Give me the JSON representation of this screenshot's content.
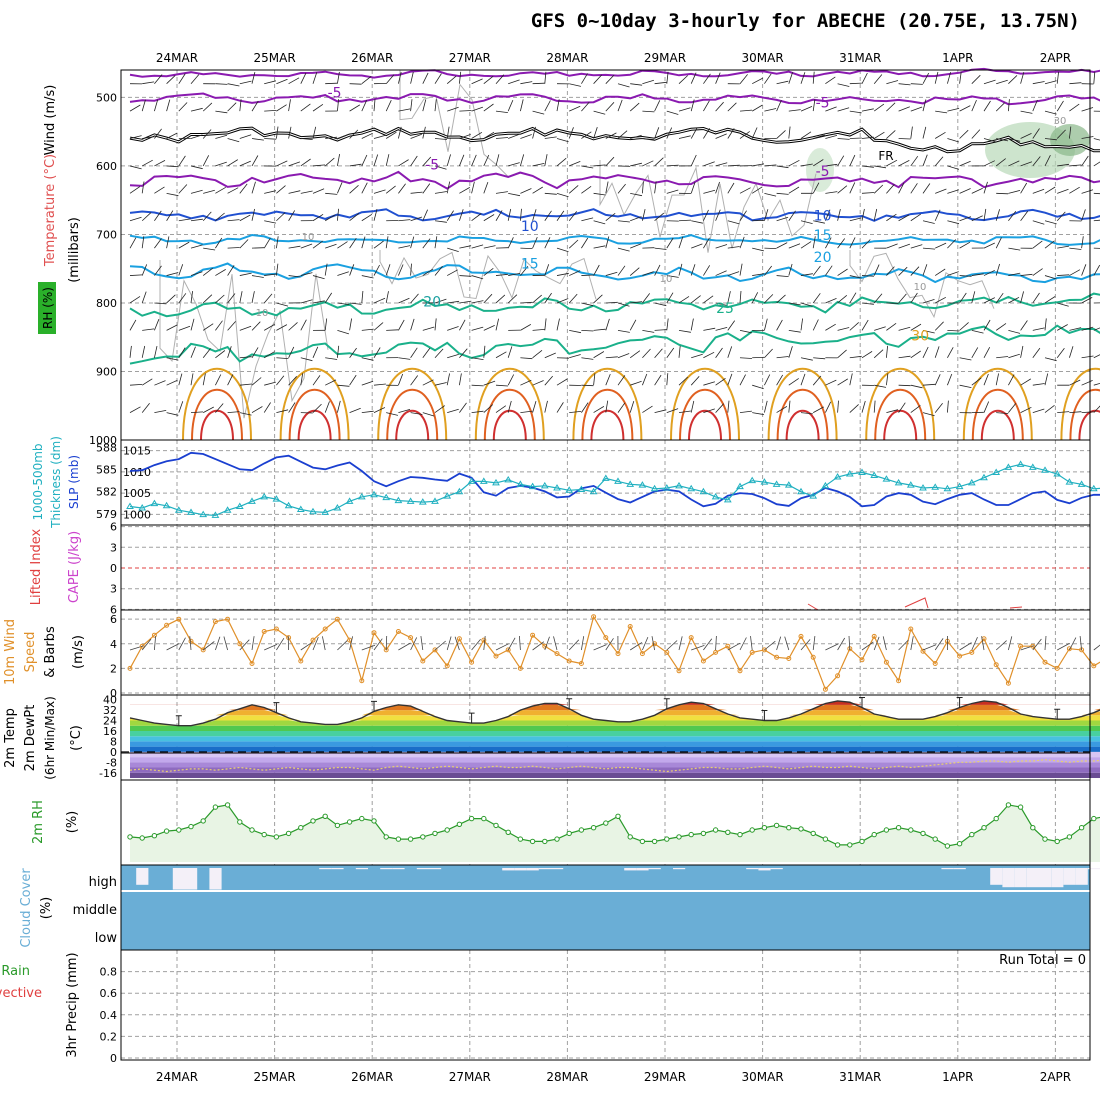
{
  "title": "GFS 0~10day 3-hourly for ABECHE (20.75E, 13.75N)",
  "dates": [
    "24MAR",
    "25MAR",
    "26MAR",
    "27MAR",
    "28MAR",
    "29MAR",
    "30MAR",
    "31MAR",
    "1APR",
    "2APR"
  ],
  "colors": {
    "frame": "#000000",
    "grid": "#a0a0a0",
    "thickness": "#20b0c0",
    "slp": "#1a3fd0",
    "wind_speed": "#e0902a",
    "rh": "#2a9a2a",
    "cloud": "#6aaed6",
    "cloud_clear": "#f4f0f8",
    "cape": "#cc44cc",
    "lifted_index": "#e04040",
    "freezing": "#000000"
  },
  "chart_data": [
    {
      "type": "line",
      "panel": "upper-air",
      "ylabel": [
        "Wind (m/s)",
        "Temperature (°C)",
        "RH (%)",
        "(millibars)"
      ],
      "yticks": [
        500,
        600,
        700,
        800,
        900,
        1000
      ],
      "ylim": [
        460,
        1000
      ],
      "isotherm_labels": [
        {
          "value": "-5",
          "date": "25MAR",
          "p": 500,
          "color": "#8a1ab0"
        },
        {
          "value": "-5",
          "date": "30MAR",
          "p": 515,
          "color": "#8a1ab0"
        },
        {
          "value": "-5",
          "date": "26MAR",
          "p": 605,
          "color": "#8a1ab0"
        },
        {
          "value": "-5",
          "date": "30MAR",
          "p": 615,
          "color": "#8a1ab0"
        },
        {
          "value": "10",
          "date": "27MAR",
          "p": 695,
          "color": "#2050d0"
        },
        {
          "value": "10",
          "date": "30MAR",
          "p": 680,
          "color": "#2050d0"
        },
        {
          "value": "15",
          "date": "27MAR",
          "p": 750,
          "color": "#1aa0e0"
        },
        {
          "value": "15",
          "date": "30MAR",
          "p": 708,
          "color": "#1aa0e0"
        },
        {
          "value": "20",
          "date": "30MAR",
          "p": 740,
          "color": "#1aa0e0"
        },
        {
          "value": "20",
          "date": "26MAR",
          "p": 805,
          "color": "#1aa0a0"
        },
        {
          "value": "25",
          "date": "29MAR",
          "p": 815,
          "color": "#1ab08a"
        },
        {
          "value": "30",
          "date": "31MAR",
          "p": 855,
          "color": "#e0a020"
        }
      ],
      "rh_contour_labels": [
        "10",
        "10",
        "10",
        "10",
        "30"
      ],
      "freezing_label": "FR"
    },
    {
      "type": "line",
      "panel": "thickness-slp",
      "ylabel_left": "1000-500mb Thickness (dm)",
      "ylabel_right": "SLP (mb)",
      "left_ticks": [
        579,
        582,
        585,
        588
      ],
      "right_ticks": [
        1000,
        1005,
        1010,
        1015
      ],
      "series": [
        {
          "name": "SLP",
          "axis": "right",
          "values": [
            1010.2,
            1010.4,
            1011.6,
            1012.5,
            1013.0,
            1014.5,
            1014.2,
            1013.0,
            1011.8,
            1010.6,
            1010.4,
            1012.0,
            1013.4,
            1013.8,
            1012.4,
            1011.0,
            1010.6,
            1011.5,
            1012.2,
            1010.2,
            1007.8,
            1006.6,
            1007.8,
            1008.8,
            1008.6,
            1008.2,
            1007.9,
            1009.6,
            1008.6,
            1005.2,
            1004.4,
            1006.2,
            1006.7,
            1006.3,
            1005.4,
            1004.0,
            1004.2,
            1006.1,
            1006.7,
            1005.1,
            1003.6,
            1002.8,
            1004.1,
            1005.4,
            1005.8,
            1005.4,
            1003.5,
            1001.9,
            1002.5,
            1004.4,
            1005.0,
            1004.8,
            1003.8,
            1002.4,
            1002.0,
            1003.8,
            1004.6,
            1006.2,
            1005.4,
            1004.1,
            1001.9,
            1002.2,
            1004.2,
            1005.0,
            1004.6,
            1003.0,
            1002.4,
            1003.6,
            1004.6,
            1005.0,
            1003.5,
            1002.2,
            1002.2,
            1003.6,
            1005.0,
            1005.4,
            1003.4,
            1002.6,
            1003.9,
            1004.6,
            1004.6,
            1002.4,
            1000.6,
            1002.8,
            1004.7,
            1004.5,
            1002.8,
            1003.4,
            1004.6,
            1005.6
          ]
        },
        {
          "name": "Thickness",
          "axis": "left",
          "values": [
            580.0,
            579.8,
            580.4,
            580.1,
            579.5,
            579.2,
            578.9,
            578.8,
            579.5,
            580.0,
            580.7,
            581.3,
            581.0,
            580.1,
            579.6,
            579.3,
            579.2,
            579.8,
            580.7,
            581.3,
            581.6,
            581.2,
            580.8,
            580.7,
            580.6,
            580.7,
            581.4,
            582.0,
            583.4,
            583.4,
            583.2,
            583.6,
            583.0,
            582.7,
            582.8,
            582.5,
            582.2,
            582.3,
            582.0,
            583.8,
            583.4,
            583.0,
            582.9,
            582.4,
            582.5,
            582.8,
            582.4,
            582.0,
            581.3,
            580.9,
            582.7,
            583.5,
            583.3,
            583.0,
            582.9,
            582.0,
            581.4,
            582.8,
            584.0,
            584.4,
            584.6,
            584.2,
            583.7,
            583.2,
            582.9,
            582.5,
            582.6,
            582.4,
            582.7,
            583.2,
            583.9,
            584.6,
            585.3,
            585.7,
            585.3,
            584.9,
            584.4,
            583.3,
            583.0,
            582.4,
            582.5,
            583.8,
            584.7,
            584.4,
            584.2,
            583.8,
            583.0,
            582.8,
            583.0,
            582.3
          ]
        }
      ]
    },
    {
      "type": "line",
      "panel": "cape-lifted-index",
      "ylabel_left": "Lifted Index",
      "ylabel_right": "CAPE (J/kg)",
      "yticks": [
        6,
        3,
        0,
        -3,
        -6
      ],
      "series": [
        {
          "name": "Lifted Index",
          "values": []
        }
      ]
    },
    {
      "type": "line",
      "panel": "wind-10m",
      "ylabel": [
        "10m Wind",
        "Speed",
        "& Barbs",
        "(m/s)"
      ],
      "yticks": [
        0,
        2,
        4,
        6
      ],
      "ylim": [
        0,
        6.5
      ],
      "series": [
        {
          "name": "10m Wind Speed",
          "values": [
            2.0,
            3.8,
            4.7,
            5.5,
            6.0,
            4.2,
            3.5,
            5.8,
            6.0,
            4.0,
            2.4,
            5.0,
            5.2,
            4.5,
            2.6,
            4.3,
            5.2,
            6.0,
            4.3,
            1.0,
            4.9,
            3.5,
            5.0,
            4.5,
            2.6,
            3.5,
            2.2,
            4.4,
            2.5,
            4.3,
            3.0,
            3.5,
            2.0,
            4.7,
            3.8,
            3.2,
            2.6,
            2.4,
            6.2,
            4.5,
            3.2,
            5.4,
            3.2,
            4.0,
            3.3,
            1.8,
            4.5,
            2.6,
            3.3,
            3.8,
            1.8,
            3.3,
            3.5,
            2.9,
            2.8,
            4.6,
            2.9,
            0.3,
            1.4,
            3.6,
            2.7,
            4.6,
            2.5,
            1.0,
            5.2,
            3.4,
            2.4,
            4.2,
            3.0,
            3.3,
            4.4,
            2.3,
            0.8,
            3.8,
            3.8,
            2.5,
            2.0,
            3.6,
            3.5,
            2.2,
            2.8,
            2.6,
            3.4,
            2.4,
            1.8,
            2.7,
            1.7,
            3.2,
            2.8,
            1.0
          ]
        }
      ]
    },
    {
      "type": "area",
      "panel": "temp-dewpt",
      "ylabel": [
        "2m Temp",
        "2m DewPt",
        "(6hr Min/Max)",
        "(°C)"
      ],
      "yticks": [
        40,
        32,
        24,
        16,
        8,
        0,
        -8,
        -16
      ],
      "ylim": [
        -20,
        42
      ],
      "series": [
        {
          "name": "2m Temp",
          "values": [
            26,
            24,
            22,
            21,
            20,
            20,
            22,
            25,
            30,
            33,
            36,
            34,
            30,
            26,
            23,
            22,
            21,
            21,
            23,
            26,
            31,
            34,
            36,
            35,
            31,
            27,
            24,
            23,
            22,
            22,
            24,
            27,
            32,
            35,
            37,
            37,
            33,
            28,
            25,
            24,
            23,
            23,
            25,
            28,
            33,
            36,
            38,
            37,
            33,
            29,
            26,
            25,
            24,
            24,
            26,
            29,
            33,
            37,
            39,
            38,
            34,
            29,
            27,
            25,
            25,
            25,
            27,
            30,
            34,
            37,
            39,
            38,
            34,
            29,
            27,
            26,
            25,
            25,
            27,
            30,
            34,
            37,
            39,
            38,
            34,
            29,
            27,
            26,
            25,
            25
          ]
        },
        {
          "name": "2m DewPt",
          "values": [
            -14,
            -13,
            -14,
            -15,
            -14,
            -13,
            -13,
            -14,
            -13,
            -12,
            -13,
            -14,
            -13,
            -12,
            -13,
            -14,
            -13,
            -12,
            -12,
            -13,
            -14,
            -12,
            -11,
            -12,
            -13,
            -12,
            -11,
            -12,
            -13,
            -12,
            -11,
            -12,
            -12,
            -11,
            -12,
            -13,
            -12,
            -11,
            -12,
            -13,
            -12,
            -12,
            -13,
            -14,
            -15,
            -14,
            -13,
            -12,
            -12,
            -13,
            -13,
            -12,
            -11,
            -12,
            -13,
            -12,
            -11,
            -12,
            -12,
            -11,
            -12,
            -13,
            -12,
            -11,
            -12,
            -11,
            -10,
            -9,
            -8,
            -8,
            -7,
            -7,
            -8,
            -7,
            -7,
            -6,
            -7,
            -8,
            -7,
            -7,
            -6,
            -7,
            -7,
            -6,
            -6,
            -5,
            -6,
            -6,
            -5,
            -5
          ]
        }
      ]
    },
    {
      "type": "line",
      "panel": "rh-2m",
      "ylabel": [
        "2m RH",
        "(%)"
      ],
      "ylim": [
        0,
        70
      ],
      "series": [
        {
          "name": "2m RH",
          "values": [
            22,
            21,
            23,
            27,
            28,
            31,
            36,
            48,
            50,
            35,
            28,
            24,
            22,
            25,
            30,
            36,
            40,
            32,
            35,
            38,
            36,
            22,
            20,
            20,
            22,
            25,
            28,
            33,
            38,
            38,
            32,
            26,
            20,
            18,
            18,
            20,
            25,
            28,
            30,
            34,
            40,
            22,
            18,
            18,
            20,
            22,
            24,
            25,
            28,
            26,
            24,
            28,
            30,
            32,
            30,
            29,
            25,
            20,
            15,
            15,
            18,
            24,
            28,
            30,
            28,
            25,
            20,
            14,
            16,
            24,
            30,
            38,
            50,
            48,
            30,
            20,
            18,
            22,
            30,
            38,
            40,
            44,
            38,
            30,
            28,
            35,
            45,
            52,
            58,
            52
          ]
        }
      ]
    },
    {
      "type": "bar",
      "panel": "cloud-cover",
      "ylabel": [
        "Cloud Cover",
        "(%)"
      ],
      "levels": [
        "high",
        "middle",
        "low"
      ],
      "series": [
        {
          "name": "high cloud cover",
          "values": [
            100,
            30,
            100,
            100,
            10,
            10,
            100,
            10,
            100,
            100,
            100,
            100,
            100,
            100,
            100,
            100,
            95,
            95,
            100,
            95,
            100,
            95,
            95,
            100,
            95,
            95,
            100,
            100,
            100,
            100,
            100,
            90,
            90,
            90,
            95,
            95,
            100,
            100,
            100,
            100,
            100,
            90,
            90,
            95,
            100,
            95,
            100,
            100,
            100,
            100,
            100,
            95,
            90,
            95,
            100,
            100,
            100,
            100,
            100,
            100,
            100,
            100,
            100,
            100,
            100,
            100,
            100,
            95,
            95,
            100,
            100,
            30,
            20,
            20,
            20,
            20,
            20,
            30,
            30,
            95,
            100,
            100,
            100,
            100,
            100,
            100,
            100,
            100,
            100,
            100
          ]
        }
      ]
    },
    {
      "type": "line",
      "panel": "precip",
      "ylabel_left": [
        "Total / Rain",
        "Convective"
      ],
      "ylabel_right": "3hr Precip (mm)",
      "yticks": [
        0,
        0.2,
        0.4,
        0.6,
        0.8
      ],
      "ylim": [
        0,
        1
      ],
      "annotation": "Run Total = 0",
      "series": [
        {
          "name": "3hr Precip",
          "values": []
        }
      ]
    }
  ]
}
